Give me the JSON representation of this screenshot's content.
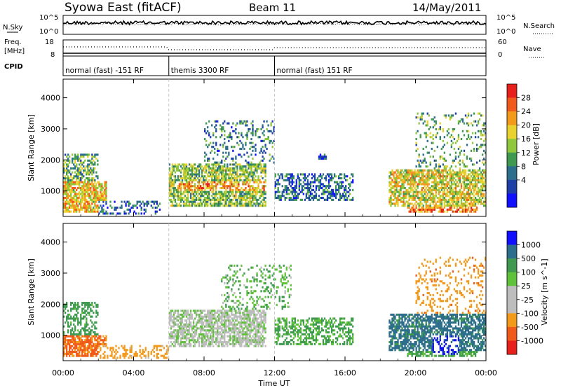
{
  "header": {
    "station": "Syowa East (fitACF)",
    "beam": "Beam 11",
    "date": "14/May/2011"
  },
  "noise_panel": {
    "left_label": "N.Sky",
    "right_label": "N.Search",
    "left_ticks": [
      "10^5",
      "10^0"
    ],
    "right_ticks": [
      "10^5",
      "10^0"
    ]
  },
  "freq_panel": {
    "left_label_1": "Freq.",
    "left_label_2": "[MHz]",
    "right_label": "Nave",
    "left_ticks": [
      "18",
      "8"
    ],
    "right_ticks": [
      "60",
      "0"
    ]
  },
  "cpid_panel": {
    "label": "CPID",
    "segments": [
      {
        "text": "normal (fast) -151 RF",
        "start_h": 0,
        "end_h": 6
      },
      {
        "text": "themis 3300 RF",
        "start_h": 6,
        "end_h": 12
      },
      {
        "text": "normal (fast) 151 RF",
        "start_h": 12,
        "end_h": 24
      }
    ]
  },
  "x_axis": {
    "label": "Time UT",
    "ticks": [
      "00:00",
      "04:00",
      "08:00",
      "12:00",
      "16:00",
      "20:00",
      "00:00"
    ]
  },
  "chart_data": [
    {
      "type": "heatmap",
      "panel": "power",
      "ylabel": "Slant Range [km]",
      "yticks": [
        1000,
        2000,
        3000,
        4000
      ],
      "ylim": [
        180,
        4600
      ],
      "xlim": [
        0,
        24
      ],
      "colorbar": {
        "label": "Power [dB]",
        "ticks": [
          "28",
          "24",
          "20",
          "16",
          "12",
          "8",
          "4"
        ],
        "colors": [
          "#e8201c",
          "#f05a1a",
          "#f39a1d",
          "#e9d230",
          "#8fc83a",
          "#3f9a4f",
          "#2c6e8c",
          "#1f3fa8",
          "#1010ff"
        ]
      },
      "regions": [
        {
          "t0": 0.0,
          "t1": 2.5,
          "r0": 300,
          "r1": 1300,
          "level": 20,
          "density": 0.75
        },
        {
          "t0": 0.0,
          "t1": 2.0,
          "r0": 1300,
          "r1": 2200,
          "level": 12,
          "density": 0.55
        },
        {
          "t0": 2.0,
          "t1": 5.5,
          "r0": 250,
          "r1": 700,
          "level": 6,
          "density": 0.35
        },
        {
          "t0": 6.0,
          "t1": 11.5,
          "r0": 500,
          "r1": 1900,
          "level": 14,
          "density": 0.7
        },
        {
          "t0": 6.5,
          "t1": 11.5,
          "r0": 1000,
          "r1": 1300,
          "level": 22,
          "density": 0.6
        },
        {
          "t0": 8.0,
          "t1": 12.0,
          "r0": 1900,
          "r1": 3300,
          "level": 8,
          "density": 0.2
        },
        {
          "t0": 12.0,
          "t1": 16.5,
          "r0": 700,
          "r1": 1600,
          "level": 7,
          "density": 0.5
        },
        {
          "t0": 14.5,
          "t1": 15.0,
          "r0": 2000,
          "r1": 2200,
          "level": 4,
          "density": 0.6
        },
        {
          "t0": 18.5,
          "t1": 24.0,
          "r0": 500,
          "r1": 1700,
          "level": 18,
          "density": 0.7
        },
        {
          "t0": 19.5,
          "t1": 23.5,
          "r0": 300,
          "r1": 500,
          "level": 26,
          "density": 0.7
        },
        {
          "t0": 20.0,
          "t1": 24.0,
          "r0": 1700,
          "r1": 3500,
          "level": 12,
          "density": 0.18
        }
      ]
    },
    {
      "type": "heatmap",
      "panel": "velocity",
      "ylabel": "Slant Range [km]",
      "yticks": [
        1000,
        2000,
        3000,
        4000
      ],
      "ylim": [
        180,
        4600
      ],
      "xlim": [
        0,
        24
      ],
      "colorbar": {
        "label": "Velocity [m s^-1]",
        "ticks": [
          "1000",
          "500",
          "100",
          "25",
          "-25",
          "-100",
          "-500",
          "-1000"
        ],
        "colors": [
          "#1010ff",
          "#2c6e8c",
          "#3f9a4f",
          "#5fc23a",
          "#bdbdbd",
          "#bdbdbd",
          "#f39a1d",
          "#f05a1a",
          "#e8201c"
        ]
      },
      "regions": [
        {
          "t0": 0.0,
          "t1": 2.5,
          "r0": 300,
          "r1": 1000,
          "level": -400,
          "density": 0.75
        },
        {
          "t0": 0.0,
          "t1": 2.0,
          "r0": 1000,
          "r1": 2100,
          "level": 150,
          "density": 0.45
        },
        {
          "t0": 2.0,
          "t1": 6.0,
          "r0": 250,
          "r1": 700,
          "level": -150,
          "density": 0.35
        },
        {
          "t0": 6.0,
          "t1": 11.5,
          "r0": 600,
          "r1": 1800,
          "level": 0,
          "density": 0.7
        },
        {
          "t0": 9.0,
          "t1": 13.0,
          "r0": 1800,
          "r1": 3300,
          "level": 60,
          "density": 0.2
        },
        {
          "t0": 12.0,
          "t1": 16.5,
          "r0": 700,
          "r1": 1600,
          "level": 80,
          "density": 0.5
        },
        {
          "t0": 18.5,
          "t1": 24.0,
          "r0": 500,
          "r1": 1700,
          "level": 450,
          "density": 0.7
        },
        {
          "t0": 19.5,
          "t1": 23.5,
          "r0": 300,
          "r1": 500,
          "level": 90,
          "density": 0.7
        },
        {
          "t0": 21.0,
          "t1": 22.5,
          "r0": 400,
          "r1": 1000,
          "level": 900,
          "density": 0.35
        },
        {
          "t0": 20.0,
          "t1": 24.0,
          "r0": 1700,
          "r1": 3500,
          "level": -200,
          "density": 0.18
        }
      ]
    }
  ]
}
